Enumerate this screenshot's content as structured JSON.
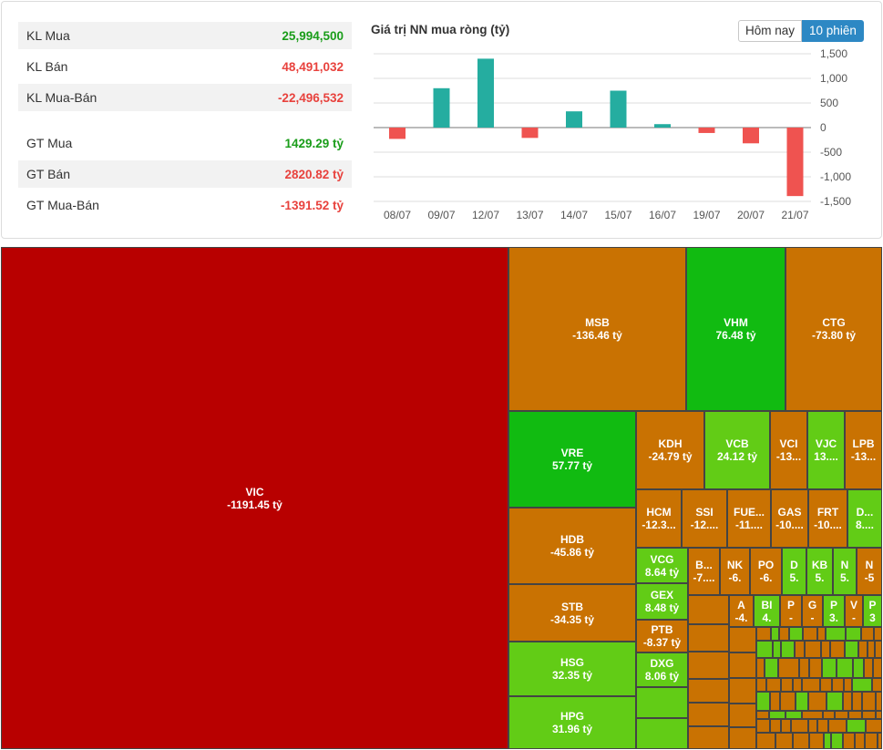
{
  "stats": [
    {
      "label": "KL Mua",
      "value": "25,994,500",
      "sign": "pos"
    },
    {
      "label": "KL Bán",
      "value": "48,491,032",
      "sign": "neg"
    },
    {
      "label": "KL Mua-Bán",
      "value": "-22,496,532",
      "sign": "neg"
    },
    {
      "label": "GT Mua",
      "value": "1429.29 tỷ",
      "sign": "pos"
    },
    {
      "label": "GT Bán",
      "value": "2820.82 tỷ",
      "sign": "neg"
    },
    {
      "label": "GT Mua-Bán",
      "value": "-1391.52 tỷ",
      "sign": "neg"
    }
  ],
  "toggle": {
    "today": "Hôm nay",
    "ten_sessions": "10 phiên"
  },
  "colors": {
    "positive_bar": "#25ada0",
    "negative_bar": "#ef5350",
    "deep_red": "#b80000",
    "orange": "#c97202",
    "bright_green": "#11bb11",
    "light_green": "#62cc16"
  },
  "chart_data": {
    "type": "bar",
    "title": "Giá trị NN mua ròng (tỷ)",
    "categories": [
      "08/07",
      "09/07",
      "12/07",
      "13/07",
      "14/07",
      "15/07",
      "16/07",
      "19/07",
      "20/07",
      "21/07"
    ],
    "values": [
      -230,
      800,
      1400,
      -210,
      330,
      750,
      70,
      -110,
      -320,
      -1391.52
    ],
    "ylim": [
      -1500,
      1500
    ],
    "yticks": [
      1500,
      1000,
      500,
      0,
      -500,
      -1000,
      -1500
    ],
    "ytick_labels": [
      "1,500",
      "1,000",
      "500",
      "0",
      "-500",
      "-1,000",
      "-1,500"
    ],
    "xlabel": "",
    "ylabel": "",
    "grid": true
  },
  "treemap": [
    {
      "ticker": "VIC",
      "value": "-1191.45 tỷ",
      "color": "deep_red"
    },
    {
      "ticker": "MSB",
      "value": "-136.46 tỷ",
      "color": "orange"
    },
    {
      "ticker": "VHM",
      "value": "76.48 tỷ",
      "color": "bright_green"
    },
    {
      "ticker": "CTG",
      "value": "-73.80 tỷ",
      "color": "orange"
    },
    {
      "ticker": "VRE",
      "value": "57.77 tỷ",
      "color": "bright_green"
    },
    {
      "ticker": "HDB",
      "value": "-45.86 tỷ",
      "color": "orange"
    },
    {
      "ticker": "STB",
      "value": "-34.35 tỷ",
      "color": "orange"
    },
    {
      "ticker": "HSG",
      "value": "32.35 tỷ",
      "color": "light_green"
    },
    {
      "ticker": "HPG",
      "value": "31.96 tỷ",
      "color": "light_green"
    },
    {
      "ticker": "KDH",
      "value": "-24.79 tỷ",
      "color": "orange"
    },
    {
      "ticker": "VCB",
      "value": "24.12 tỷ",
      "color": "light_green"
    },
    {
      "ticker": "VCI",
      "value": "-13...",
      "color": "orange"
    },
    {
      "ticker": "VJC",
      "value": "13....",
      "color": "light_green"
    },
    {
      "ticker": "LPB",
      "value": "-13...",
      "color": "orange"
    },
    {
      "ticker": "HCM",
      "value": "-12.3...",
      "color": "orange"
    },
    {
      "ticker": "SSI",
      "value": "-12....",
      "color": "orange"
    },
    {
      "ticker": "FUE...",
      "value": "-11....",
      "color": "orange"
    },
    {
      "ticker": "GAS",
      "value": "-10....",
      "color": "orange"
    },
    {
      "ticker": "FRT",
      "value": "-10....",
      "color": "orange"
    },
    {
      "ticker": "D...",
      "value": "8....",
      "color": "light_green"
    },
    {
      "ticker": "VCG",
      "value": "8.64 tỷ",
      "color": "light_green"
    },
    {
      "ticker": "GEX",
      "value": "8.48 tỷ",
      "color": "light_green"
    },
    {
      "ticker": "PTB",
      "value": "-8.37 tỷ",
      "color": "orange"
    },
    {
      "ticker": "DXG",
      "value": "8.06 tỷ",
      "color": "light_green"
    },
    {
      "ticker": "B...",
      "value": "-7....",
      "color": "orange"
    },
    {
      "ticker": "NK",
      "value": "-6.",
      "color": "orange"
    },
    {
      "ticker": "PO",
      "value": "-6.",
      "color": "orange"
    },
    {
      "ticker": "D",
      "value": "5.",
      "color": "light_green"
    },
    {
      "ticker": "KB",
      "value": "5.",
      "color": "light_green"
    },
    {
      "ticker": "N",
      "value": "5.",
      "color": "light_green"
    },
    {
      "ticker": "N",
      "value": "-5",
      "color": "orange"
    },
    {
      "ticker": "A",
      "value": "-4.",
      "color": "orange"
    },
    {
      "ticker": "BI",
      "value": "4.",
      "color": "light_green"
    },
    {
      "ticker": "P",
      "value": "-",
      "color": "orange"
    },
    {
      "ticker": "G",
      "value": "-",
      "color": "orange"
    },
    {
      "ticker": "P",
      "value": "3.",
      "color": "light_green"
    },
    {
      "ticker": "V",
      "value": "-",
      "color": "orange"
    },
    {
      "ticker": "P",
      "value": "3",
      "color": "light_green"
    }
  ]
}
